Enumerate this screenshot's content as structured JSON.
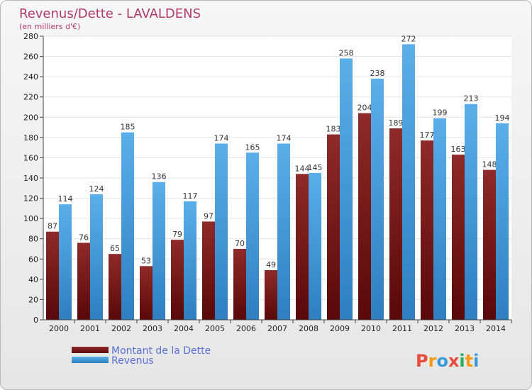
{
  "header": {
    "title": "Revenus/Dette - LAVALDENS",
    "subtitle": "(en milliers d'€)"
  },
  "chart_data": {
    "type": "bar",
    "categories": [
      "2000",
      "2001",
      "2002",
      "2003",
      "2004",
      "2005",
      "2006",
      "2007",
      "2008",
      "2009",
      "2010",
      "2011",
      "2012",
      "2013",
      "2014"
    ],
    "series": [
      {
        "name": "Montant de la Dette",
        "color": "#7a1a1a",
        "values": [
          87,
          76,
          65,
          53,
          79,
          97,
          70,
          49,
          144,
          183,
          204,
          189,
          177,
          163,
          148
        ]
      },
      {
        "name": "Revenus",
        "color": "#4fa3e3",
        "values": [
          114,
          124,
          185,
          136,
          117,
          174,
          165,
          174,
          145,
          258,
          238,
          272,
          199,
          213,
          194
        ]
      }
    ],
    "ylim": [
      0,
      280
    ],
    "yticks": [
      0,
      20,
      40,
      60,
      80,
      100,
      120,
      140,
      160,
      180,
      200,
      220,
      240,
      260,
      280
    ],
    "grid": true,
    "legend_position": "bottom-left"
  },
  "logo": {
    "text": "Proxiti",
    "letters": [
      {
        "char": "P",
        "color": "#e84c3d"
      },
      {
        "char": "r",
        "color": "#f39c12"
      },
      {
        "char": "o",
        "color": "#3a9ad9"
      },
      {
        "char": "x",
        "color": "#e84c3d"
      },
      {
        "char": "i",
        "color": "#27ae60"
      },
      {
        "char": "t",
        "color": "#f39c12"
      },
      {
        "char": "i",
        "color": "#3a9ad9"
      }
    ]
  }
}
